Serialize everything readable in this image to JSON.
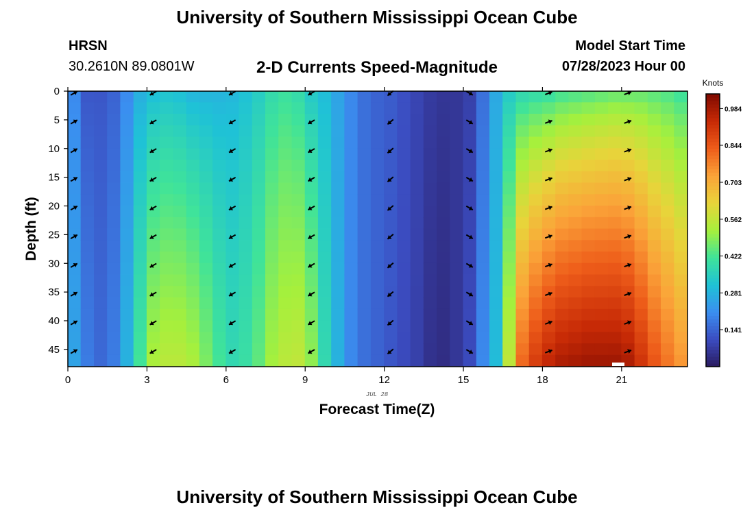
{
  "page": {
    "title": "University of Southern Mississippi Ocean Cube",
    "bottom_title": "University of Southern Mississippi Ocean Cube",
    "station_code": "HRSN",
    "station_coords": "30.2610N  89.0801W",
    "model_label": "Model Start Time",
    "model_time": "07/28/2023 Hour 00"
  },
  "chart_data": {
    "type": "heatmap",
    "title": "2-D Currents Speed-Magnitude",
    "xlabel": "Forecast Time(Z)",
    "ylabel": "Depth (ft)",
    "date_label": "JUL 28",
    "xlim": [
      0,
      23.5
    ],
    "ylim": [
      0,
      48
    ],
    "x_ticks": [
      0,
      3,
      6,
      9,
      12,
      15,
      18,
      21
    ],
    "x_tick_labels": [
      "0",
      "3",
      "6",
      "9",
      "12",
      "15",
      "18",
      "21"
    ],
    "y_ticks": [
      0,
      5,
      10,
      15,
      20,
      25,
      30,
      35,
      40,
      45
    ],
    "y_tick_labels": [
      "0",
      "5",
      "10",
      "15",
      "20",
      "25",
      "30",
      "35",
      "40",
      "45"
    ],
    "hours": [
      0,
      0.5,
      1,
      1.5,
      2,
      2.5,
      3,
      3.5,
      4,
      4.5,
      5,
      5.5,
      6,
      6.5,
      7,
      7.5,
      8,
      8.5,
      9,
      9.5,
      10,
      10.5,
      11,
      11.5,
      12,
      12.5,
      13,
      13.5,
      14,
      14.5,
      15,
      15.5,
      16,
      16.5,
      17,
      17.5,
      18,
      18.5,
      19,
      19.5,
      20,
      20.5,
      21,
      21.5,
      22,
      22.5,
      23
    ],
    "surface_speed_knots": [
      0.2,
      0.12,
      0.12,
      0.14,
      0.2,
      0.27,
      0.3,
      0.31,
      0.3,
      0.28,
      0.28,
      0.28,
      0.29,
      0.31,
      0.34,
      0.38,
      0.4,
      0.38,
      0.33,
      0.3,
      0.25,
      0.2,
      0.16,
      0.14,
      0.13,
      0.11,
      0.09,
      0.07,
      0.06,
      0.06,
      0.08,
      0.16,
      0.26,
      0.33,
      0.36,
      0.37,
      0.38,
      0.4,
      0.41,
      0.42,
      0.43,
      0.44,
      0.44,
      0.44,
      0.43,
      0.42,
      0.4
    ],
    "bottom_speed_knots": [
      0.25,
      0.18,
      0.15,
      0.18,
      0.28,
      0.42,
      0.53,
      0.55,
      0.55,
      0.53,
      0.48,
      0.42,
      0.38,
      0.4,
      0.45,
      0.52,
      0.55,
      0.56,
      0.5,
      0.38,
      0.28,
      0.2,
      0.16,
      0.14,
      0.12,
      0.1,
      0.08,
      0.05,
      0.04,
      0.06,
      0.1,
      0.2,
      0.3,
      0.56,
      0.82,
      0.9,
      0.95,
      0.98,
      0.99,
      1.0,
      1.0,
      1.0,
      0.98,
      0.92,
      0.85,
      0.8,
      0.75
    ],
    "arrow_hours": [
      0,
      3,
      6,
      9,
      12,
      15,
      18,
      21
    ],
    "arrow_depths": [
      0,
      5,
      10,
      15,
      20,
      25,
      30,
      35,
      40,
      45
    ],
    "arrow_direction_deg": [
      60,
      240,
      240,
      240,
      230,
      120,
      70,
      70
    ],
    "colorbar": {
      "label": "Knots",
      "ticks": [
        "0.141",
        "0.281",
        "0.422",
        "0.562",
        "0.703",
        "0.844",
        "0.984"
      ],
      "min": 0.0,
      "max": 1.04,
      "colors": [
        "#2a1a5e",
        "#3b4cc0",
        "#3b8ef0",
        "#1fc2d6",
        "#3fe39a",
        "#a6f03c",
        "#e8d43a",
        "#fba339",
        "#ee5d1a",
        "#c72a06",
        "#800a00"
      ]
    }
  }
}
